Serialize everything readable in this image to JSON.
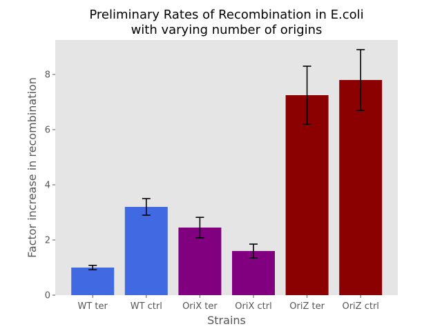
{
  "chart_data": {
    "type": "bar",
    "title_lines": [
      "Preliminary Rates of Recombination in E.coli",
      "with varying number of origins"
    ],
    "xlabel": "Strains",
    "ylabel": "Factor increase in recombination",
    "categories": [
      "WT ter",
      "WT ctrl",
      "OriX ter",
      "OriX ctrl",
      "OriZ ter",
      "OriZ ctrl"
    ],
    "values": [
      1.0,
      3.2,
      2.45,
      1.6,
      7.25,
      7.8
    ],
    "errors": [
      0.08,
      0.3,
      0.37,
      0.25,
      1.05,
      1.1
    ],
    "bar_colors": [
      "#4169e1",
      "#4169e1",
      "#800080",
      "#800080",
      "#8b0000",
      "#8b0000"
    ],
    "ylim": [
      0,
      9.25
    ],
    "yticks": [
      0,
      2,
      4,
      6,
      8
    ],
    "ytick_labels": [
      "0",
      "2",
      "4",
      "6",
      "8"
    ],
    "grid": false,
    "background": "#e5e5e5"
  }
}
